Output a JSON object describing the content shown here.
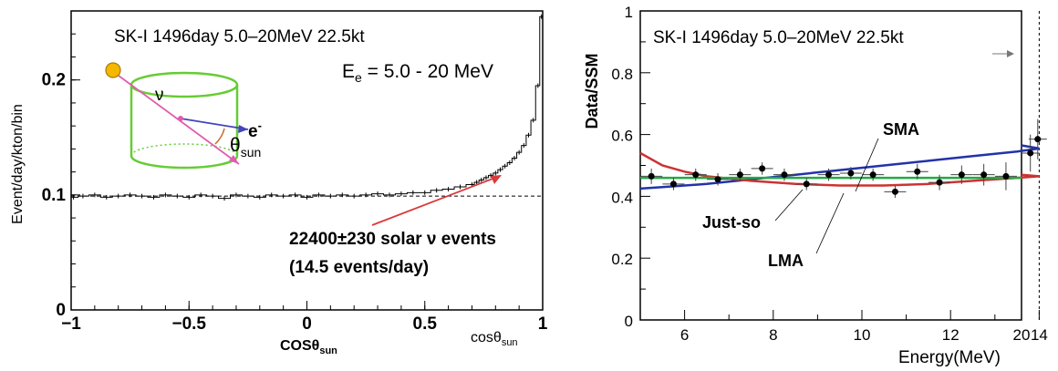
{
  "chart_data": [
    {
      "type": "line",
      "title": "SK-I  1496day  5.0–20MeV  22.5kt",
      "energy_label_prefix": "E",
      "energy_label_sub": "e",
      "energy_label_suffix": " = 5.0 - 20 MeV",
      "xlabel_main": "cos",
      "xlabel_theta": "θ",
      "xlabel_sub": "sun",
      "xlabel_orange": "COSθ",
      "xlabel_orange_sub": "sun",
      "ylabel": "Event/day/kton/bin",
      "xlim": [
        -1,
        1
      ],
      "ylim": [
        0,
        0.26
      ],
      "x_ticks": [
        "−1",
        "−0.5",
        "0",
        "0.5",
        "1"
      ],
      "x_tick_values": [
        -1,
        -0.5,
        0,
        0.5,
        1
      ],
      "y_ticks": [
        "0",
        "0.1",
        "0.2"
      ],
      "y_tick_values": [
        0,
        0.1,
        0.2
      ],
      "background_level": 0.099,
      "annotation_line1": "22400±230 solar ν events",
      "annotation_line2": "(14.5 events/day)",
      "diagram_labels": {
        "nu": "ν",
        "electron": "e",
        "electron_sup": "-",
        "theta": "θ",
        "theta_sub": "sun"
      },
      "series": [
        {
          "x": [
            -0.99,
            -0.95,
            -0.9,
            -0.85,
            -0.8,
            -0.75,
            -0.7,
            -0.65,
            -0.6,
            -0.55,
            -0.5,
            -0.45,
            -0.4,
            -0.35,
            -0.3,
            -0.25,
            -0.2,
            -0.15,
            -0.1,
            -0.05,
            0,
            0.05,
            0.1,
            0.15,
            0.2,
            0.25,
            0.3,
            0.35,
            0.4,
            0.45,
            0.5,
            0.55,
            0.6,
            0.65,
            0.7,
            0.72,
            0.74,
            0.76,
            0.78,
            0.8,
            0.82,
            0.84,
            0.86,
            0.88,
            0.9,
            0.92,
            0.94,
            0.96,
            0.98,
            0.995
          ],
          "y": [
            0.098,
            0.099,
            0.1,
            0.098,
            0.099,
            0.1,
            0.099,
            0.098,
            0.1,
            0.099,
            0.098,
            0.1,
            0.099,
            0.097,
            0.1,
            0.099,
            0.098,
            0.1,
            0.099,
            0.1,
            0.098,
            0.1,
            0.099,
            0.1,
            0.099,
            0.1,
            0.101,
            0.1,
            0.101,
            0.102,
            0.102,
            0.104,
            0.105,
            0.107,
            0.109,
            0.111,
            0.113,
            0.115,
            0.117,
            0.119,
            0.122,
            0.125,
            0.128,
            0.132,
            0.137,
            0.143,
            0.152,
            0.165,
            0.195,
            0.255
          ]
        }
      ],
      "colors": {
        "title": "#000000",
        "energy": "#3d49a3",
        "annotation": "#d93a3a",
        "orange": "#c8672a",
        "diagram": "#66cc33",
        "nu_arrow": "#e05cae",
        "e_arrow": "#4444bb"
      }
    },
    {
      "type": "scatter",
      "title": "SK-I  1496day  5.0–20MeV  22.5kt",
      "xlabel": "Energy(MeV)",
      "ylabel": "Data/SSM",
      "ylim": [
        0,
        1
      ],
      "x_ticks": [
        "6",
        "8",
        "10",
        "12",
        "14",
        "20"
      ],
      "y_ticks": [
        "0",
        "0.2",
        "0.4",
        "0.6",
        "0.8",
        "1"
      ],
      "y_tick_values": [
        0,
        0.2,
        0.4,
        0.6,
        0.8,
        1
      ],
      "points": {
        "x": [
          5.25,
          5.75,
          6.25,
          6.75,
          7.25,
          7.75,
          8.25,
          8.75,
          9.25,
          9.75,
          10.25,
          10.75,
          11.25,
          11.75,
          12.25,
          12.75,
          13.25,
          14.5,
          17.0
        ],
        "y": [
          0.465,
          0.44,
          0.47,
          0.455,
          0.47,
          0.49,
          0.47,
          0.44,
          0.47,
          0.475,
          0.47,
          0.415,
          0.48,
          0.445,
          0.47,
          0.47,
          0.465,
          0.585,
          0.54
        ],
        "err": [
          0.025,
          0.02,
          0.02,
          0.02,
          0.02,
          0.02,
          0.02,
          0.02,
          0.02,
          0.02,
          0.02,
          0.02,
          0.025,
          0.025,
          0.03,
          0.035,
          0.045,
          0.065,
          0.06
        ]
      },
      "series": [
        {
          "name": "SMA",
          "color": "#2233aa",
          "x": [
            5.0,
            5.5,
            6.5,
            7.5,
            8.5,
            9.5,
            10.5,
            11.5,
            12.5,
            13.5,
            14.0,
            20.0
          ],
          "y": [
            0.425,
            0.43,
            0.44,
            0.455,
            0.47,
            0.485,
            0.5,
            0.515,
            0.53,
            0.545,
            0.555,
            0.565
          ]
        },
        {
          "name": "Just-so",
          "color": "#cc3333",
          "x": [
            5.0,
            5.5,
            6.0,
            6.5,
            7.5,
            8.5,
            9.5,
            10.5,
            11.5,
            12.5,
            13.5,
            14.0,
            20.0
          ],
          "y": [
            0.54,
            0.5,
            0.48,
            0.465,
            0.45,
            0.44,
            0.435,
            0.435,
            0.44,
            0.45,
            0.46,
            0.465,
            0.47
          ]
        },
        {
          "name": "LMA",
          "color": "#22aa44",
          "x": [
            5.0,
            20.0
          ],
          "y": [
            0.46,
            0.46
          ]
        }
      ],
      "cutoff_energy": 14
    }
  ]
}
